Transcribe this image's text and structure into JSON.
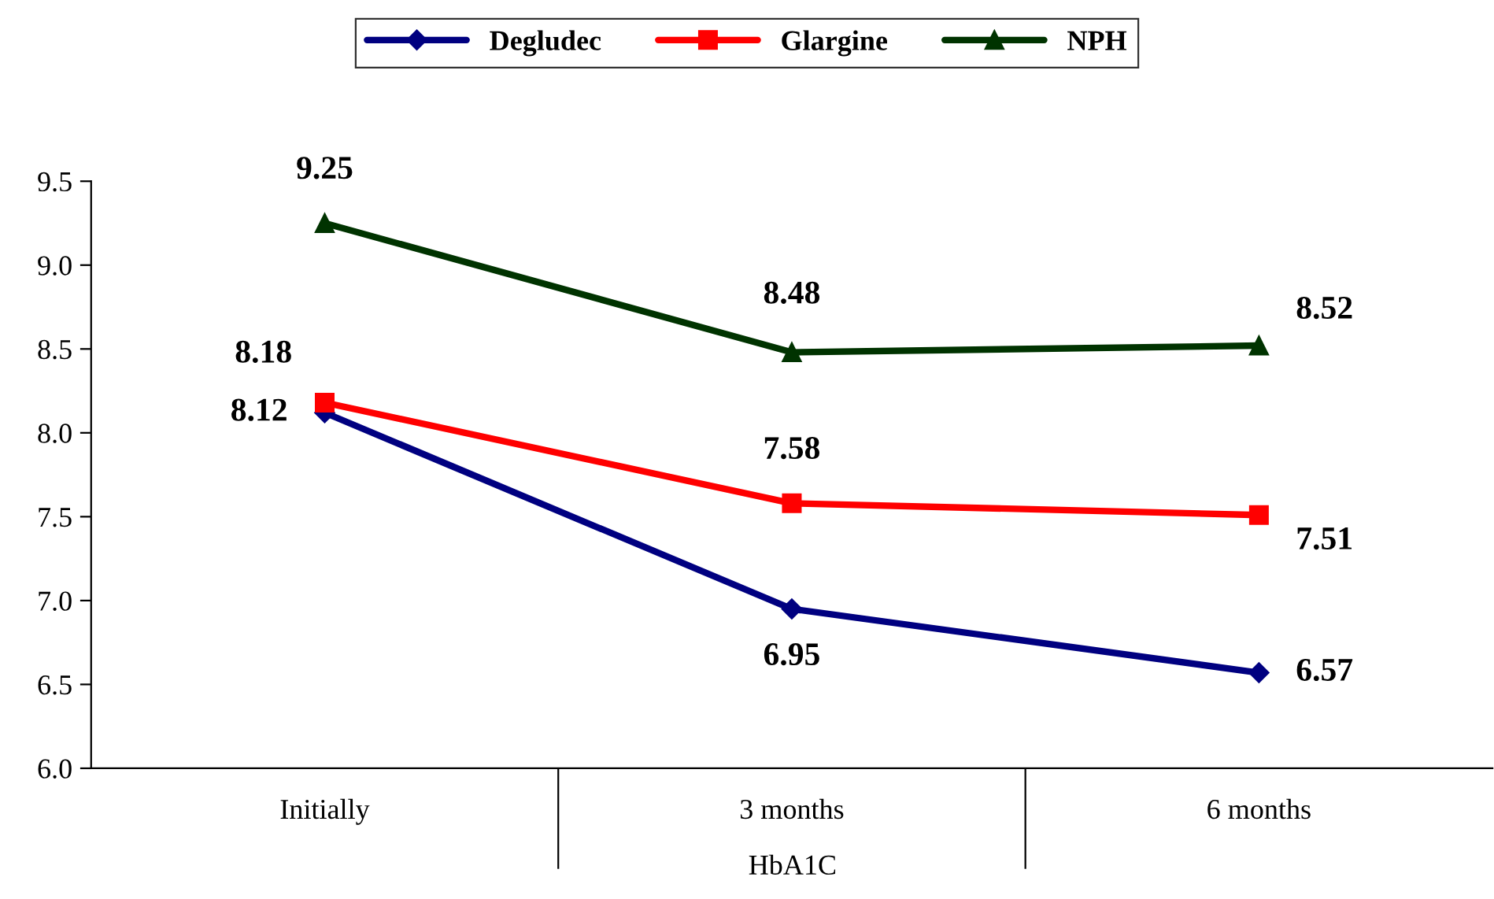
{
  "chart_data": {
    "type": "line",
    "xlabel": "HbA1C",
    "categories": [
      "Initially",
      "3 months",
      "6 months"
    ],
    "series": [
      {
        "name": "Degludec",
        "color": "#000080",
        "marker": "diamond",
        "values": [
          8.12,
          6.95,
          6.57
        ]
      },
      {
        "name": "Glargine",
        "color": "#ff0000",
        "marker": "square",
        "values": [
          8.18,
          7.58,
          7.51
        ]
      },
      {
        "name": "NPH",
        "color": "#003300",
        "marker": "triangle",
        "values": [
          9.25,
          8.48,
          8.52
        ]
      }
    ],
    "ylim": [
      6.0,
      9.5
    ],
    "yticks": [
      {
        "value": 6.0,
        "label": "6.0"
      },
      6.5,
      {
        "value": 7.0,
        "label": "7.0"
      },
      7.5,
      {
        "value": 8.0,
        "label": "8.0"
      },
      8.5,
      {
        "value": 9.0,
        "label": "9.0"
      },
      9.5
    ],
    "grid": false,
    "legend": "top",
    "data_labels": true,
    "line_style": "solid"
  }
}
